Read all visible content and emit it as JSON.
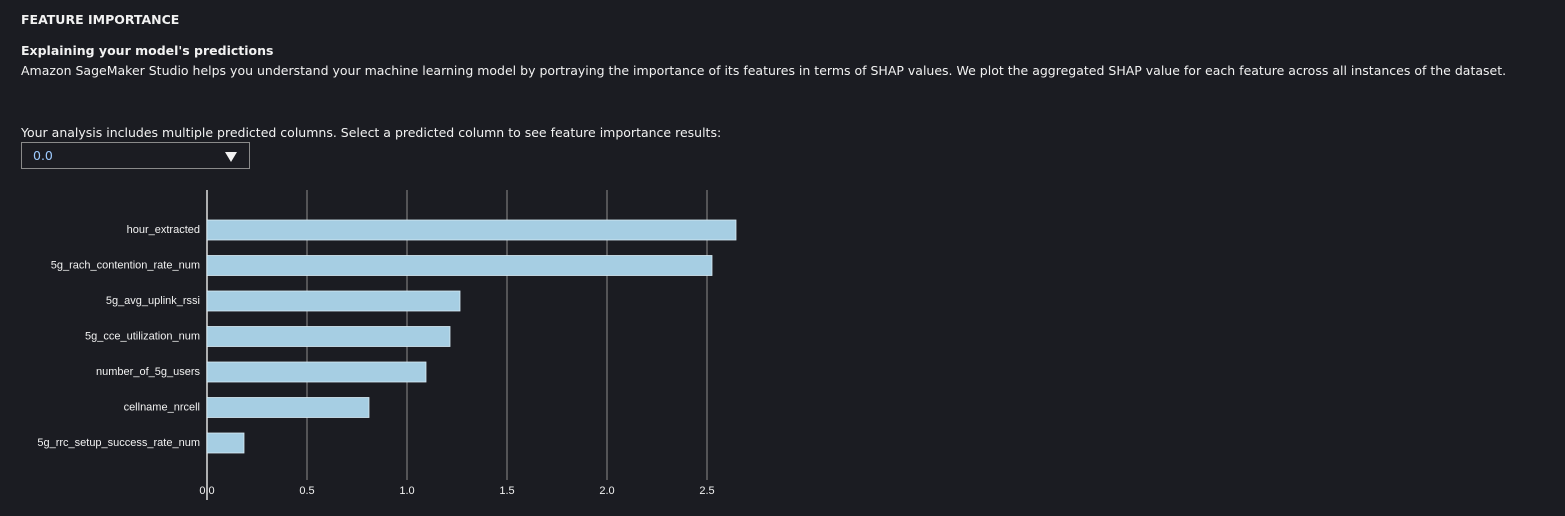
{
  "header": {
    "title": "FEATURE IMPORTANCE",
    "subtitle": "Explaining your model's predictions",
    "description": "Amazon SageMaker Studio helps you understand your machine learning model by portraying the importance of its features in terms of SHAP values. We plot the aggregated SHAP value for each feature across all instances of the dataset."
  },
  "selector": {
    "prompt": "Your analysis includes multiple predicted columns. Select a predicted column to see feature importance results:",
    "selected": "0.0"
  },
  "chart_data": {
    "type": "barh",
    "categories": [
      "hour_extracted",
      "5g_rach_contention_rate_num",
      "5g_avg_uplink_rssi",
      "5g_cce_utilization_num",
      "number_of_5g_users",
      "cellname_nrcell",
      "5g_rrc_setup_success_rate_num"
    ],
    "values": [
      2.645,
      2.525,
      1.265,
      1.215,
      1.095,
      0.81,
      0.185
    ],
    "color": "#a6cee3",
    "xlim": [
      0,
      2.7
    ],
    "xticks": [
      {
        "value": 0,
        "label": "0.0"
      },
      0.5,
      {
        "value": 1,
        "label": "1.0"
      },
      1.5,
      {
        "value": 2,
        "label": "2.0"
      },
      2.5
    ],
    "grid": true
  }
}
